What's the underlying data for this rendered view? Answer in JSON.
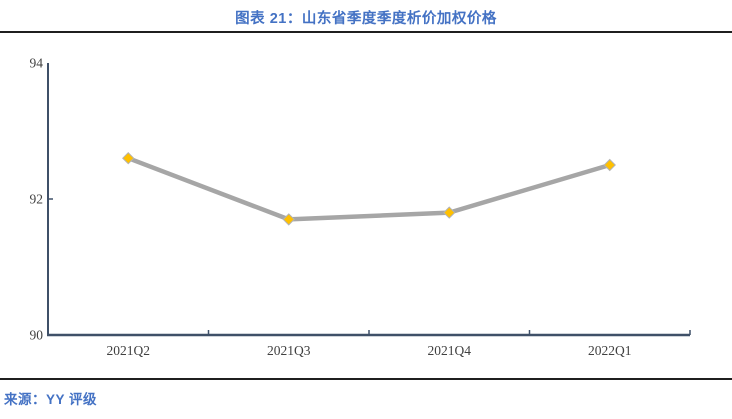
{
  "header": {
    "title": "图表 21：山东省季度季度析价加权价格"
  },
  "source": {
    "label": "来源：YY 评级"
  },
  "colors": {
    "title_accent": "#4472C4",
    "axis": "#3F5068",
    "line": "#A6A6A6",
    "marker": "#FFC000",
    "rule": "#1F1F1F"
  },
  "chart_data": {
    "type": "line",
    "title": "图表 21：山东省季度季度析价加权价格",
    "categories": [
      "2021Q2",
      "2021Q3",
      "2021Q4",
      "2022Q1"
    ],
    "values": [
      92.6,
      91.7,
      91.8,
      92.5
    ],
    "xlabel": "",
    "ylabel": "",
    "ylim": [
      90,
      94
    ],
    "yticks": [
      90,
      92,
      94
    ],
    "grid": false,
    "legend": "none",
    "marker": "diamond"
  }
}
